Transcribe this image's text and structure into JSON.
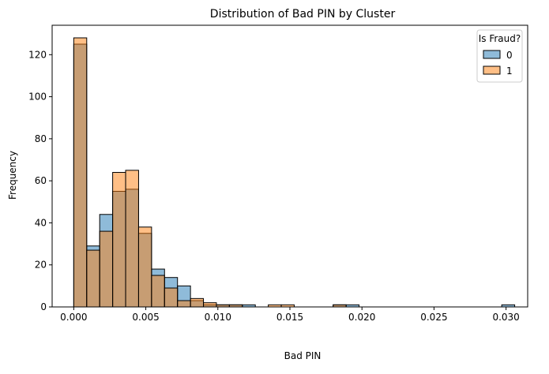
{
  "chart_data": {
    "type": "bar",
    "title": "Distribution of Bad PIN by Cluster",
    "xlabel": "Bad PIN",
    "ylabel": "Frequency",
    "xlim": [
      -0.0015,
      0.0315
    ],
    "ylim": [
      0,
      134
    ],
    "x_ticks": [
      0.0,
      0.005,
      0.01,
      0.015,
      0.02,
      0.025,
      0.03
    ],
    "x_tick_labels": [
      "0.000",
      "0.005",
      "0.010",
      "0.015",
      "0.020",
      "0.025",
      "0.030"
    ],
    "y_ticks": [
      0,
      20,
      40,
      60,
      80,
      100,
      120
    ],
    "y_tick_labels": [
      "0",
      "20",
      "40",
      "60",
      "80",
      "100",
      "120"
    ],
    "bin_width": 0.0009,
    "bin_starts": [
      0.0,
      0.0009,
      0.0018,
      0.0027,
      0.0036,
      0.0045,
      0.0054,
      0.0063,
      0.0072,
      0.0081,
      0.009,
      0.0099,
      0.0108,
      0.0117,
      0.0126,
      0.0135,
      0.0144,
      0.0153,
      0.0162,
      0.0171,
      0.018,
      0.0189,
      0.0198,
      0.0207,
      0.0216,
      0.0225,
      0.0234,
      0.0243,
      0.0252,
      0.0261,
      0.027,
      0.0279,
      0.0288,
      0.0297
    ],
    "series": [
      {
        "name": "0",
        "color": "#1f77b4",
        "values": [
          125,
          29,
          44,
          55,
          56,
          35,
          18,
          14,
          10,
          3,
          1,
          1,
          1,
          1,
          0,
          0,
          0,
          0,
          0,
          0,
          1,
          1,
          0,
          0,
          0,
          0,
          0,
          0,
          0,
          0,
          0,
          0,
          0,
          1
        ]
      },
      {
        "name": "1",
        "color": "#ff7f0e",
        "values": [
          128,
          27,
          36,
          64,
          65,
          38,
          15,
          9,
          3,
          4,
          2,
          1,
          1,
          0,
          0,
          1,
          1,
          0,
          0,
          0,
          1,
          0,
          0,
          0,
          0,
          0,
          0,
          0,
          0,
          0,
          0,
          0,
          0,
          0
        ]
      }
    ],
    "grid": false,
    "legend": {
      "title": "Is Fraud?",
      "placement": "top-right"
    },
    "bar_alpha": 0.5
  }
}
